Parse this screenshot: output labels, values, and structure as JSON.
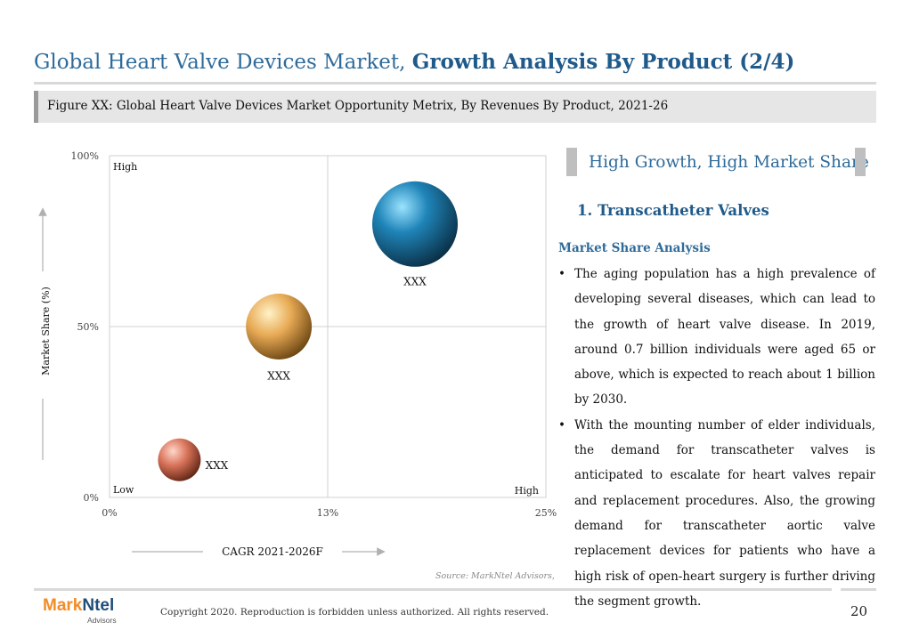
{
  "header": {
    "title_prefix": "Global Heart Valve Devices Market, ",
    "title_bold": "Growth Analysis By Product (2/4)",
    "figure_caption": "Figure XX: Global Heart Valve Devices Market Opportunity Metrix, By Revenues By Product, 2021-26"
  },
  "chart_data": {
    "type": "scatter",
    "subtype": "bubble",
    "title": "",
    "xlabel": "CAGR 2021-2026F",
    "ylabel": "Market Share (%)",
    "xlim": [
      0,
      25
    ],
    "ylim": [
      0,
      100
    ],
    "x_ticks": [
      {
        "value": 0,
        "label": "0%"
      },
      {
        "value": 12.5,
        "label": "13%"
      },
      {
        "value": 25,
        "label": "25%"
      }
    ],
    "y_ticks": [
      {
        "value": 0,
        "label": "0%"
      },
      {
        "value": 50,
        "label": "50%"
      },
      {
        "value": 100,
        "label": "100%"
      }
    ],
    "quadrant_labels": {
      "top_left": "High",
      "bottom_left": "Low",
      "bottom_right": "High"
    },
    "grid": "quadrant-midlines",
    "points": [
      {
        "label": "XXX",
        "x": 17.5,
        "y": 80,
        "size": 1.0,
        "color": "#1f84b8"
      },
      {
        "label": "XXX",
        "x": 9.7,
        "y": 50,
        "size": 0.77,
        "color": "#e0a24a"
      },
      {
        "label": "XXX",
        "x": 4.0,
        "y": 11,
        "size": 0.5,
        "color": "#d9735a"
      }
    ]
  },
  "panel": {
    "heading": "High Growth, High Market Share",
    "subheading": "1. Transcatheter Valves",
    "section_title": "Market Share Analysis",
    "bullets": [
      "The aging population has a high prevalence of developing several diseases, which can lead to the growth of heart valve disease. In 2019, around 0.7 billion individuals were aged 65 or above, which is expected to reach about 1 billion by 2030.",
      "With the mounting number of elder individuals, the demand for transcatheter valves is anticipated to escalate for heart valves repair and replacement procedures.  Also, the growing demand for transcatheter aortic valve replacement devices for patients who have a high risk of open-heart surgery is further driving the segment growth."
    ]
  },
  "source": "Source: MarkNtel Advisors,",
  "footer": {
    "logo_part1": "Mark",
    "logo_part2": "Ntel",
    "logo_sub": "Advisors",
    "copyright": "Copyright 2020. Reproduction is forbidden unless authorized. All rights reserved.",
    "page_number": "20"
  }
}
